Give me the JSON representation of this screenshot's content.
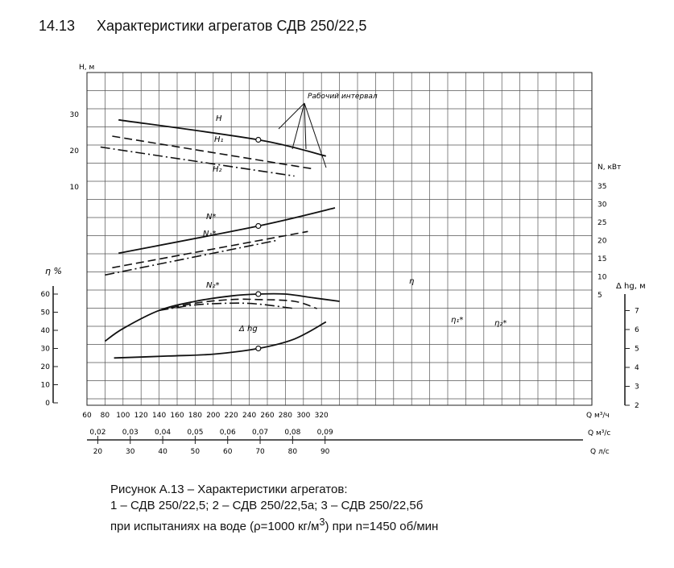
{
  "page": {
    "section_number": "14.13",
    "section_title": "Характеристики агрегатов СДВ 250/22,5"
  },
  "caption": {
    "line1": "Рисунок А.13 – Характеристики агрегатов:",
    "line2": "1 – СДВ 250/22,5; 2 – СДВ 250/22,5а; 3 – СДВ 250/22,5б",
    "line3_pre": "при испытаниях на воде (ρ=1000 кг/м",
    "line3_sup": "3",
    "line3_post": ") при n=1450 об/мин"
  },
  "chart_data": {
    "type": "line",
    "grid": true,
    "axes": {
      "q_m3h": {
        "label": "Q м³/ч",
        "range": [
          60,
          330
        ],
        "ticks": [
          60,
          80,
          100,
          120,
          140,
          160,
          180,
          200,
          220,
          240,
          260,
          280,
          300,
          320
        ]
      },
      "q_m3s": {
        "label": "Q м³/с",
        "ticks": [
          {
            "label": "0,02",
            "q": 72
          },
          {
            "label": "0,03",
            "q": 108
          },
          {
            "label": "0,04",
            "q": 144
          },
          {
            "label": "0,05",
            "q": 180
          },
          {
            "label": "0,06",
            "q": 216
          },
          {
            "label": "0,07",
            "q": 252
          },
          {
            "label": "0,08",
            "q": 288
          },
          {
            "label": "0,09",
            "q": 324
          }
        ]
      },
      "q_ls": {
        "label": "Q л/с",
        "ticks": [
          {
            "label": "20",
            "q": 72
          },
          {
            "label": "30",
            "q": 108
          },
          {
            "label": "40",
            "q": 144
          },
          {
            "label": "50",
            "q": 180
          },
          {
            "label": "60",
            "q": 216
          },
          {
            "label": "70",
            "q": 252
          },
          {
            "label": "80",
            "q": 288
          },
          {
            "label": "90",
            "q": 324
          }
        ]
      },
      "head": {
        "label": "H, м",
        "range": [
          0,
          40
        ],
        "ticks": [
          10,
          20,
          30
        ]
      },
      "power": {
        "label": "N, кВт",
        "range": [
          0,
          35
        ],
        "ticks": [
          5,
          10,
          15,
          20,
          25,
          30,
          35
        ]
      },
      "efficiency": {
        "label": "η %",
        "range": [
          0,
          60
        ],
        "ticks": [
          0,
          10,
          20,
          30,
          40,
          50,
          60
        ]
      },
      "npsh": {
        "label": "Δ hg, м",
        "range": [
          2,
          8
        ],
        "ticks": [
          2,
          3,
          4,
          5,
          6,
          7
        ]
      }
    },
    "series": [
      {
        "name": "H",
        "axis": "head",
        "style": "solid",
        "x": [
          95,
          250,
          325
        ],
        "y": [
          28.5,
          23,
          18.5
        ]
      },
      {
        "name": "H₁",
        "axis": "head",
        "style": "dash",
        "x": [
          88,
          310
        ],
        "y": [
          24,
          15
        ]
      },
      {
        "name": "H₂",
        "axis": "head",
        "style": "dashdot",
        "x": [
          75,
          290
        ],
        "y": [
          21,
          13
        ]
      },
      {
        "name": "N*",
        "axis": "power",
        "style": "solid",
        "x": [
          95,
          250,
          335
        ],
        "y": [
          16.5,
          24,
          29
        ]
      },
      {
        "name": "N₁*",
        "axis": "power",
        "style": "dash",
        "x": [
          88,
          305
        ],
        "y": [
          12.5,
          22.5
        ]
      },
      {
        "name": "N₂*",
        "axis": "power",
        "style": "dashdot",
        "x": [
          80,
          270
        ],
        "y": [
          10.5,
          20
        ]
      },
      {
        "name": "η",
        "axis": "efficiency",
        "style": "solid",
        "x": [
          80,
          100,
          140,
          180,
          220,
          250,
          280,
          310,
          340
        ],
        "y": [
          34,
          41,
          51,
          56,
          59,
          60,
          60,
          58,
          56
        ]
      },
      {
        "name": "η₁*",
        "axis": "efficiency",
        "style": "dash",
        "x": [
          140,
          180,
          220,
          250,
          290,
          315
        ],
        "y": [
          51,
          55,
          57,
          57,
          56,
          52
        ]
      },
      {
        "name": "η₂*",
        "axis": "efficiency",
        "style": "dashdot",
        "x": [
          140,
          180,
          220,
          250,
          290
        ],
        "y": [
          51,
          54,
          55,
          54.5,
          52
        ]
      },
      {
        "name": "Δ hg",
        "axis": "npsh",
        "style": "solid",
        "x": [
          90,
          150,
          200,
          250,
          290,
          325
        ],
        "y": [
          4.5,
          4.6,
          4.7,
          5.0,
          5.5,
          6.4
        ]
      }
    ],
    "operating_points": [
      {
        "series": "H",
        "x": 250,
        "y": 23
      },
      {
        "series": "N*",
        "x": 250,
        "y": 24
      },
      {
        "series": "η",
        "x": 250,
        "y": 60
      },
      {
        "series": "Δ hg",
        "x": 250,
        "y": 5.0
      }
    ],
    "annotations": {
      "working_range": "Рабочий интервал",
      "labels": [
        "H",
        "H₁",
        "H₂",
        "N*",
        "N₁*",
        "N₂*",
        "η",
        "η₁*",
        "η₂*",
        "Δ hg"
      ]
    }
  }
}
